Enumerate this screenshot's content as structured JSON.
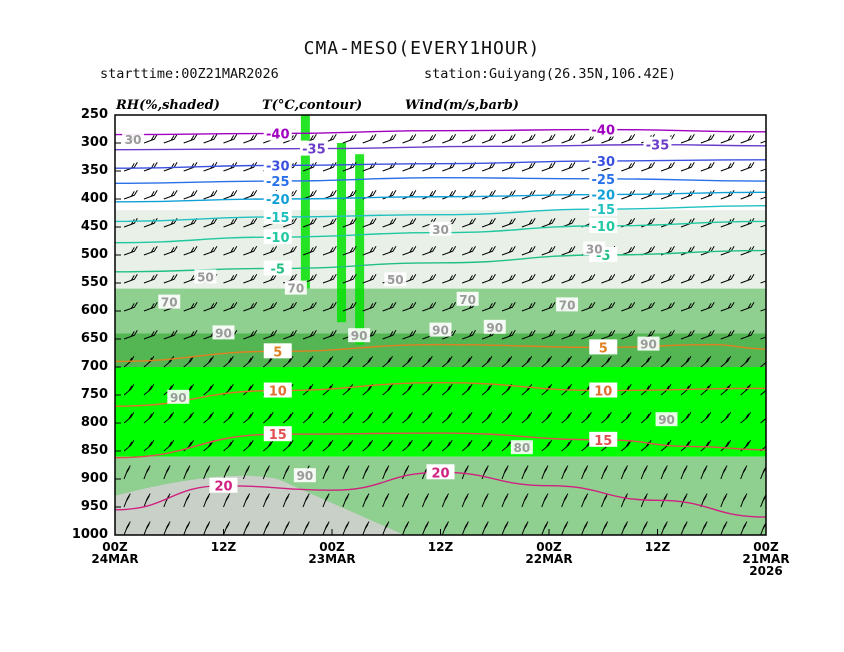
{
  "header": {
    "title": "CMA-MESO(EVERY1HOUR)",
    "starttime": "starttime:00Z21MAR2026",
    "station": "station:Guiyang(26.35N,106.42E)"
  },
  "legend": {
    "rh": "RH(%,shaded)",
    "temp": "T(°C,contour)",
    "wind": "Wind(m/s,barb)"
  },
  "chart_data": {
    "type": "heatmap",
    "title": "CMA-MESO(EVERY1HOUR)",
    "xlabel": "",
    "ylabel": "",
    "y_levels_hpa": [
      250,
      300,
      350,
      400,
      450,
      500,
      550,
      600,
      650,
      700,
      750,
      800,
      850,
      900,
      950,
      1000
    ],
    "ylim": [
      1000,
      250
    ],
    "x_ticks": [
      {
        "hours": 72,
        "line1": "00Z",
        "line2": "24MAR",
        "line3": ""
      },
      {
        "hours": 60,
        "line1": "12Z",
        "line2": "",
        "line3": ""
      },
      {
        "hours": 48,
        "line1": "00Z",
        "line2": "23MAR",
        "line3": ""
      },
      {
        "hours": 36,
        "line1": "12Z",
        "line2": "",
        "line3": ""
      },
      {
        "hours": 24,
        "line1": "00Z",
        "line2": "22MAR",
        "line3": ""
      },
      {
        "hours": 12,
        "line1": "12Z",
        "line2": "",
        "line3": ""
      },
      {
        "hours": 0,
        "line1": "00Z",
        "line2": "21MAR",
        "line3": "2026"
      }
    ],
    "xlim_hours": [
      72,
      0
    ],
    "rh_colors": {
      "30": "#ffffff",
      "50": "#e8f0e8",
      "70": "#c8dcc8",
      "80": "#8fcf8f",
      "90": "#53b653",
      "95": "#00ff00"
    },
    "rh_bands": [
      {
        "p_top": 250,
        "p_bot": 420,
        "rh": 30
      },
      {
        "p_top": 420,
        "p_bot": 560,
        "rh": 50
      },
      {
        "p_top": 560,
        "p_bot": 640,
        "rh": 80
      },
      {
        "p_top": 640,
        "p_bot": 700,
        "rh": 90
      },
      {
        "p_top": 700,
        "p_bot": 860,
        "rh": 95
      },
      {
        "p_top": 860,
        "p_bot": 1000,
        "rh": 80
      }
    ],
    "temperature_contours": [
      {
        "value": -40,
        "color": "#a000c0",
        "points": [
          [
            72,
            285
          ],
          [
            54,
            283
          ],
          [
            36,
            278
          ],
          [
            18,
            276
          ],
          [
            0,
            280
          ]
        ]
      },
      {
        "value": -35,
        "color": "#6a3cc8",
        "points": [
          [
            72,
            312
          ],
          [
            50,
            310
          ],
          [
            30,
            306
          ],
          [
            12,
            303
          ],
          [
            0,
            305
          ]
        ]
      },
      {
        "value": -30,
        "color": "#3a50e0",
        "points": [
          [
            72,
            345
          ],
          [
            54,
            340
          ],
          [
            36,
            337
          ],
          [
            18,
            332
          ],
          [
            0,
            330
          ]
        ]
      },
      {
        "value": -25,
        "color": "#2a70e8",
        "points": [
          [
            72,
            372
          ],
          [
            54,
            368
          ],
          [
            36,
            362
          ],
          [
            18,
            364
          ],
          [
            0,
            368
          ]
        ]
      },
      {
        "value": -20,
        "color": "#10a0d8",
        "points": [
          [
            72,
            405
          ],
          [
            54,
            400
          ],
          [
            36,
            396
          ],
          [
            18,
            392
          ],
          [
            0,
            388
          ]
        ]
      },
      {
        "value": -15,
        "color": "#20c0c0",
        "points": [
          [
            72,
            440
          ],
          [
            54,
            432
          ],
          [
            36,
            428
          ],
          [
            18,
            418
          ],
          [
            0,
            412
          ]
        ]
      },
      {
        "value": -10,
        "color": "#20c8a0",
        "points": [
          [
            72,
            478
          ],
          [
            54,
            468
          ],
          [
            36,
            460
          ],
          [
            18,
            448
          ],
          [
            0,
            440
          ]
        ]
      },
      {
        "value": -5,
        "color": "#20c080",
        "points": [
          [
            72,
            530
          ],
          [
            54,
            524
          ],
          [
            36,
            514
          ],
          [
            18,
            500
          ],
          [
            0,
            492
          ]
        ]
      },
      {
        "value": 5,
        "color": "#e08020",
        "points": [
          [
            72,
            690
          ],
          [
            54,
            672
          ],
          [
            36,
            660
          ],
          [
            18,
            665
          ],
          [
            6,
            660
          ],
          [
            0,
            668
          ]
        ]
      },
      {
        "value": 10,
        "color": "#e07030",
        "points": [
          [
            72,
            770
          ],
          [
            54,
            742
          ],
          [
            36,
            728
          ],
          [
            18,
            742
          ],
          [
            0,
            738
          ]
        ]
      },
      {
        "value": 15,
        "color": "#e05050",
        "points": [
          [
            72,
            862
          ],
          [
            54,
            820
          ],
          [
            36,
            818
          ],
          [
            18,
            830
          ],
          [
            8,
            842
          ],
          [
            0,
            848
          ]
        ]
      },
      {
        "value": 20,
        "color": "#d02080",
        "points": [
          [
            72,
            955
          ],
          [
            60,
            912
          ],
          [
            48,
            920
          ],
          [
            36,
            888
          ],
          [
            24,
            912
          ],
          [
            12,
            938
          ],
          [
            0,
            968
          ]
        ]
      }
    ],
    "rh_labels": [
      "30",
      "30",
      "30",
      "50",
      "50",
      "70",
      "70",
      "70",
      "70",
      "90",
      "90",
      "90",
      "90",
      "90",
      "90",
      "90",
      "90",
      "80"
    ],
    "legend_position": "top"
  }
}
